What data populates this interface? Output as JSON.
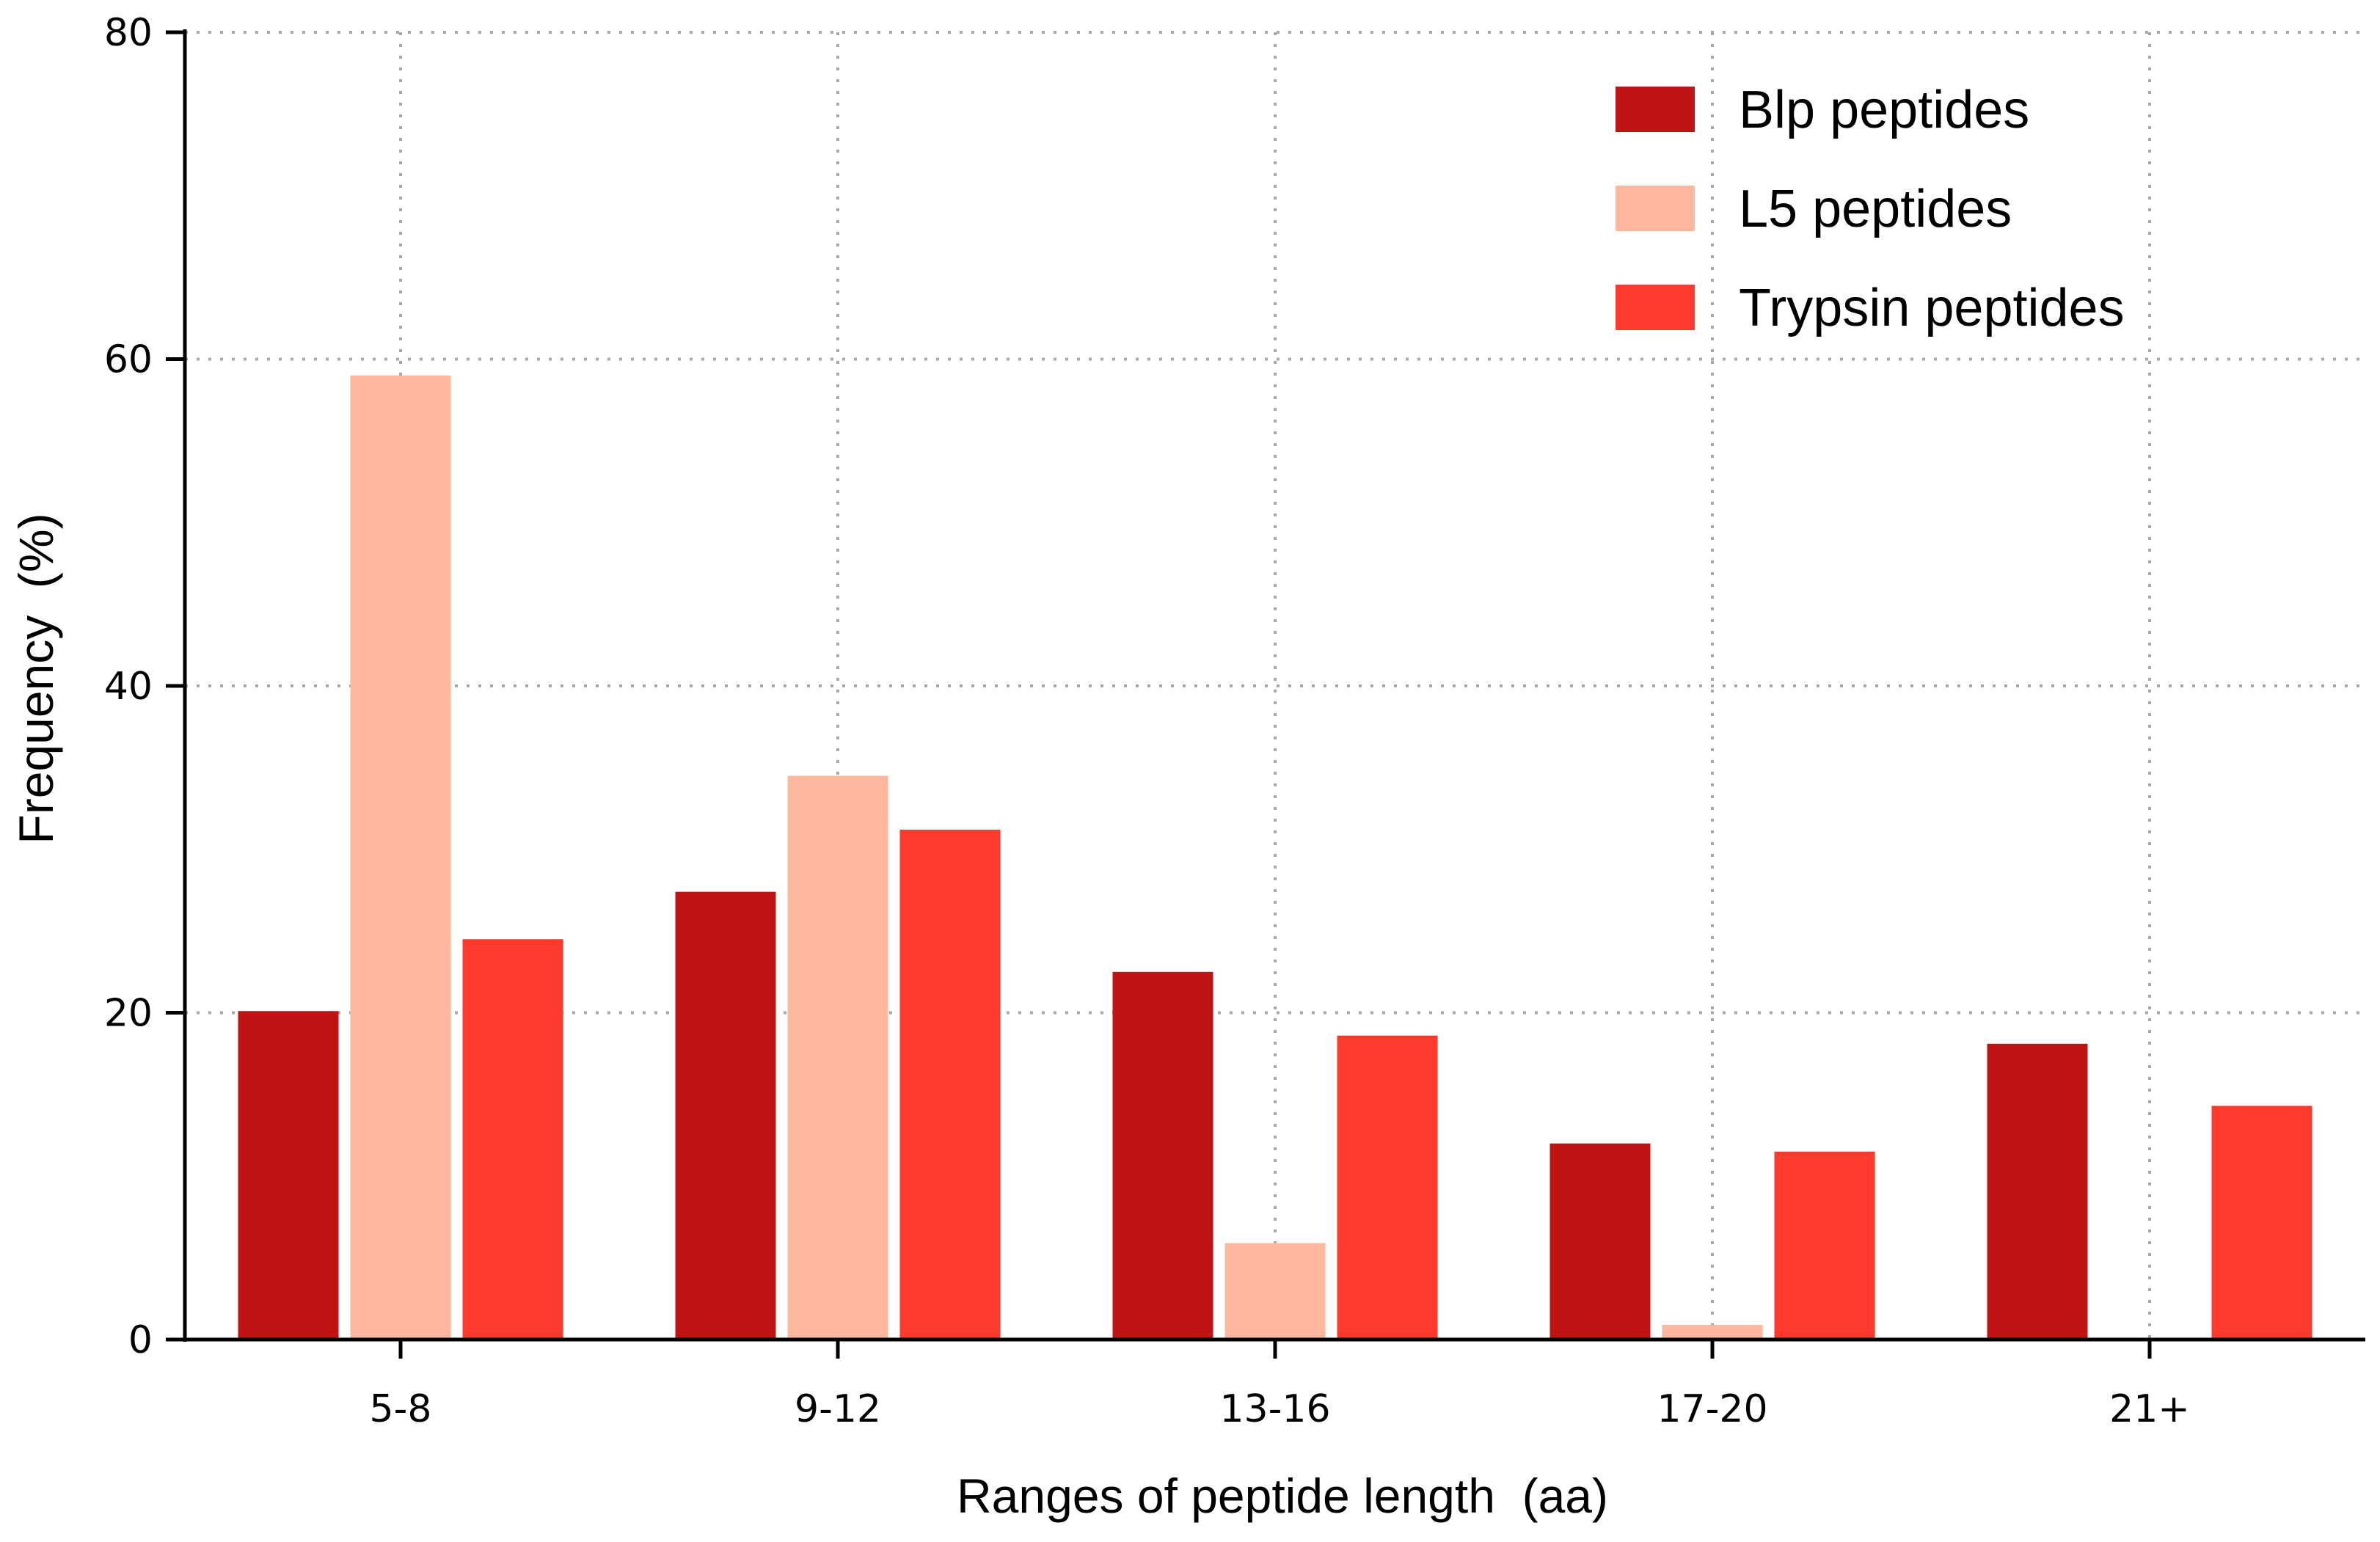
{
  "chart_data": {
    "type": "bar",
    "title": "",
    "xlabel": "Ranges of peptide length  (aa)",
    "ylabel": "Frequency  (%)",
    "categories": [
      "5-8",
      "9-12",
      "13-16",
      "17-20",
      "21+"
    ],
    "ylim": [
      0,
      80
    ],
    "yticks": [
      "0",
      "20",
      "40",
      "60",
      "80"
    ],
    "grid": true,
    "legend_position": "top-right",
    "series": [
      {
        "name": "Blp peptides",
        "color": "#c01414",
        "values": [
          20.1,
          27.4,
          22.5,
          12.0,
          18.1
        ]
      },
      {
        "name": "L5 peptides",
        "color": "#fdb89e",
        "values": [
          59.0,
          34.5,
          5.9,
          0.9,
          0.0
        ]
      },
      {
        "name": "Trypsin peptides",
        "color": "#ff3a2c",
        "values": [
          24.5,
          31.2,
          18.6,
          11.5,
          14.3
        ]
      }
    ]
  }
}
